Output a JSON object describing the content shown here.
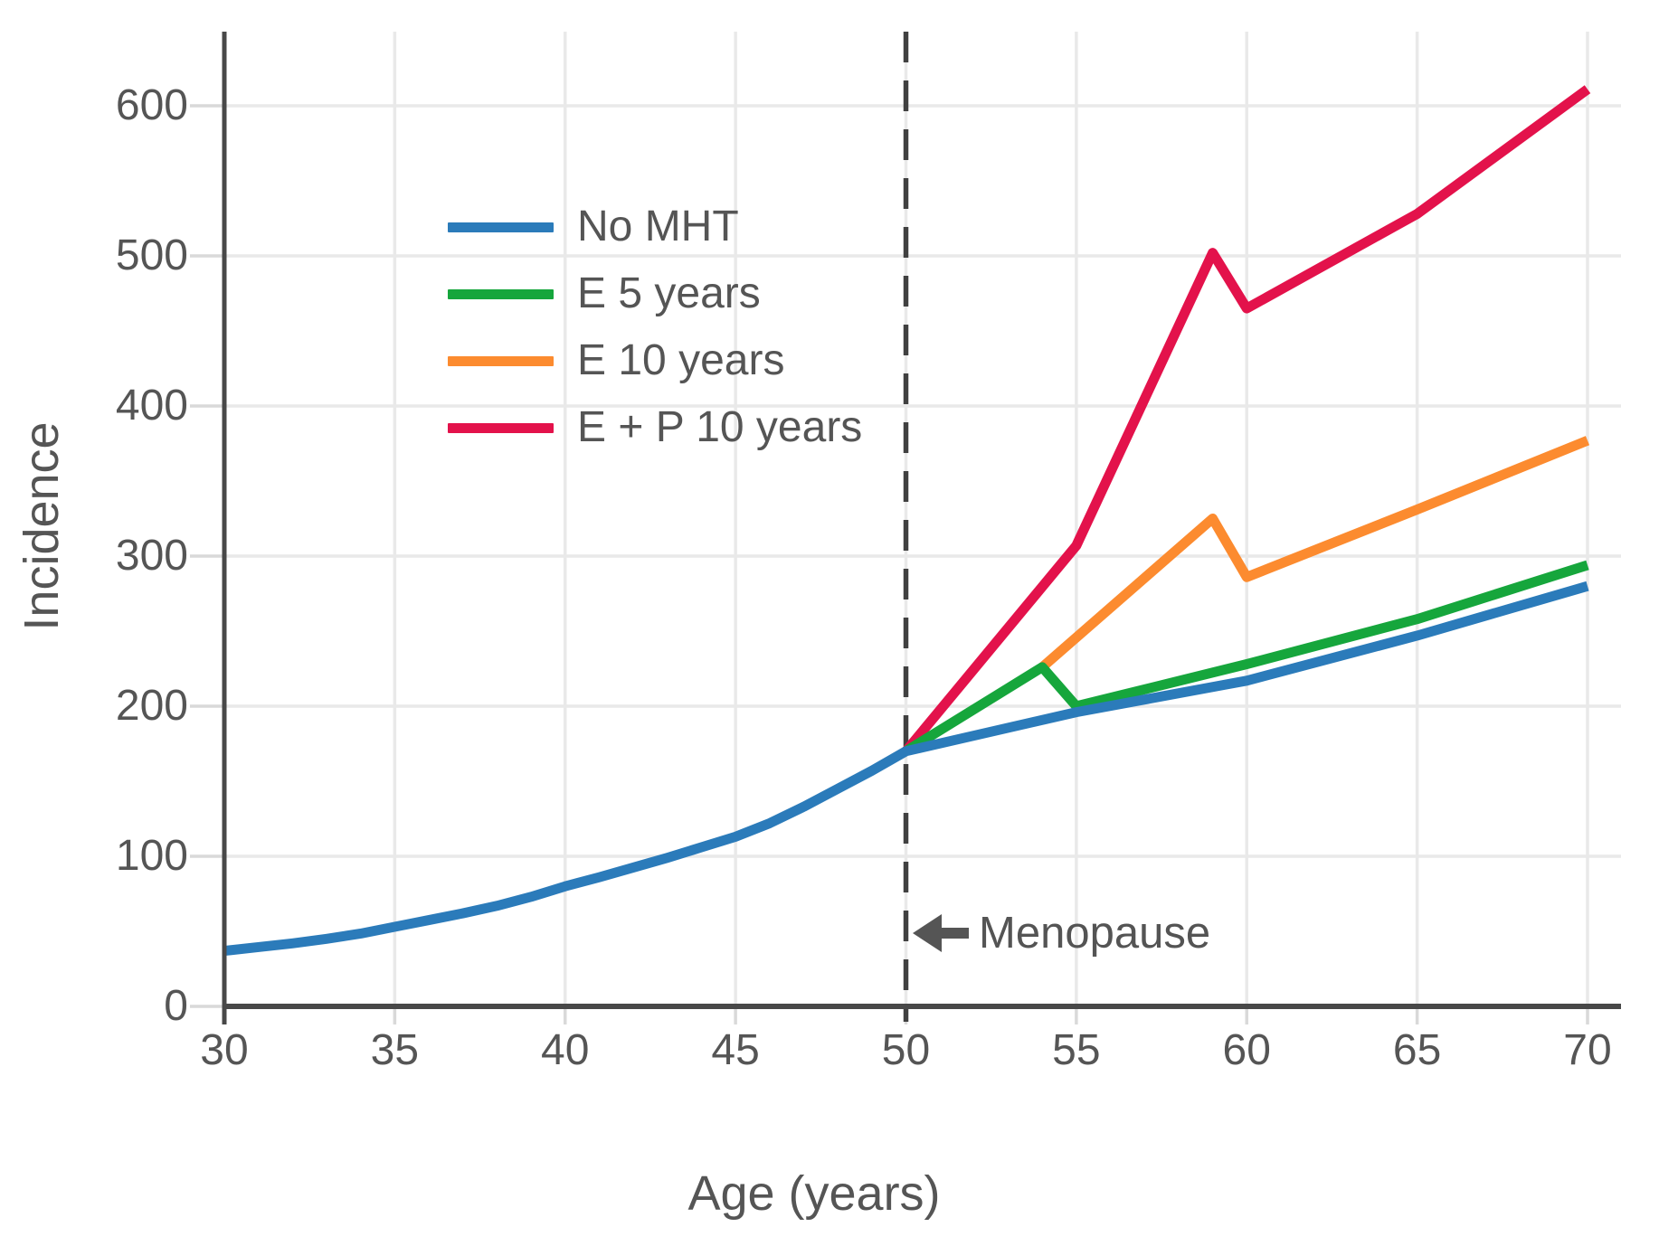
{
  "chart_data": {
    "type": "line",
    "title": "",
    "xlabel": "Age (years)",
    "ylabel": "Incidence",
    "x_ticks": [
      30,
      35,
      40,
      45,
      50,
      55,
      60,
      65,
      70
    ],
    "y_ticks": [
      0,
      100,
      200,
      300,
      400,
      500,
      600
    ],
    "xlim": [
      30,
      71
    ],
    "ylim": [
      0,
      650
    ],
    "grid": true,
    "legend_position": "upper-left-inside",
    "vline": {
      "x": 50,
      "style": "dashed",
      "label": "Menopause"
    },
    "annotation": {
      "label": "Menopause",
      "arrow": "left",
      "x": 50.2,
      "y": 49
    },
    "series": [
      {
        "name": "No MHT",
        "color": "#2b7bba",
        "x": [
          30,
          31,
          32,
          33,
          34,
          35,
          36,
          37,
          38,
          39,
          40,
          41,
          42,
          43,
          44,
          45,
          46,
          47,
          48,
          49,
          50,
          55,
          60,
          65,
          70
        ],
        "y": [
          37,
          39.5,
          42,
          45,
          48.5,
          53,
          57.5,
          62,
          67,
          73,
          80,
          86,
          92.5,
          99,
          106,
          113,
          122,
          133,
          145,
          157,
          170,
          196,
          217,
          247,
          280
        ]
      },
      {
        "name": "E 5 years",
        "color": "#16a63c",
        "x": [
          50,
          54,
          55,
          60,
          65,
          70
        ],
        "y": [
          170,
          226,
          200,
          228,
          258,
          294
        ]
      },
      {
        "name": "E 10 years",
        "color": "#fc8b2f",
        "x": [
          54,
          59,
          60,
          65,
          70
        ],
        "y": [
          226,
          325,
          286,
          331,
          377
        ]
      },
      {
        "name": "E + P 10 years",
        "color": "#e3124b",
        "x": [
          50,
          55,
          59,
          60,
          65,
          70
        ],
        "y": [
          170,
          307,
          502,
          465,
          528,
          611
        ]
      }
    ]
  },
  "colors": {
    "text": "#555555",
    "axis": "#484848",
    "grid": "#e9e9e9",
    "tick": "#d9d9d9",
    "dashed_line": "#404040",
    "background": "#ffffff"
  }
}
